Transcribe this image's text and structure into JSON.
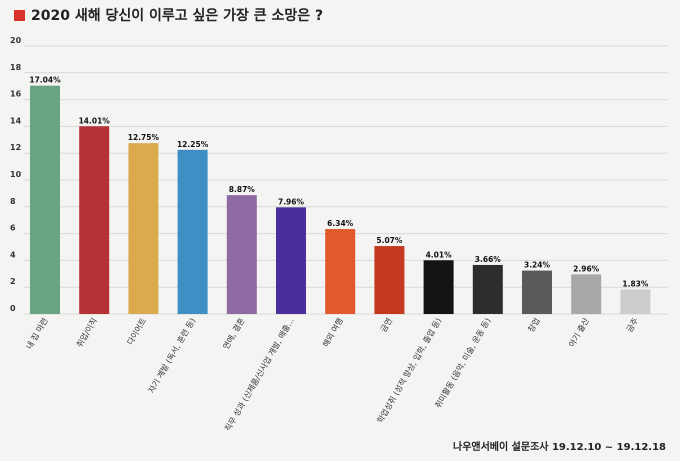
{
  "chart_data": {
    "type": "bar",
    "title": "2020 새해 당신이 이루고 싶은 가장 큰 소망은 ?",
    "title_marker_color": "#d9332b",
    "ylim": [
      0,
      20
    ],
    "yticks": [
      0,
      2,
      4,
      6,
      8,
      10,
      12,
      14,
      16,
      18,
      20
    ],
    "grid": true,
    "categories": [
      "내 집 마련",
      "취업/이직",
      "다이어트",
      "자기 계발 (독서, 훈련 등)",
      "연애, 결혼",
      "직무 성과 (신제품/신사업 개발, 매출...",
      "해외 여행",
      "금연",
      "학업성취 (성적 향상, 입학, 졸업 등)",
      "취미활동 (음악, 미술, 운동 등)",
      "창업",
      "아기 출산",
      "금주"
    ],
    "values": [
      17.04,
      14.01,
      12.75,
      12.25,
      8.87,
      7.96,
      6.34,
      5.07,
      4.01,
      3.66,
      3.24,
      2.96,
      1.83
    ],
    "value_labels": [
      "17.04%",
      "14.01%",
      "12.75%",
      "12.25%",
      "8.87%",
      "7.96%",
      "6.34%",
      "5.07%",
      "4.01%",
      "3.66%",
      "3.24%",
      "2.96%",
      "1.83%"
    ],
    "colors": [
      "#6aa383",
      "#b63335",
      "#dbaa4c",
      "#3f8fc4",
      "#8e6aa3",
      "#4a2f9a",
      "#e05a2b",
      "#c53922",
      "#141414",
      "#2d2d2d",
      "#5a5a5a",
      "#a8a8a8",
      "#cccccc"
    ]
  },
  "source": "나우앤서베이 설문조사 19.12.10 ~ 19.12.18"
}
